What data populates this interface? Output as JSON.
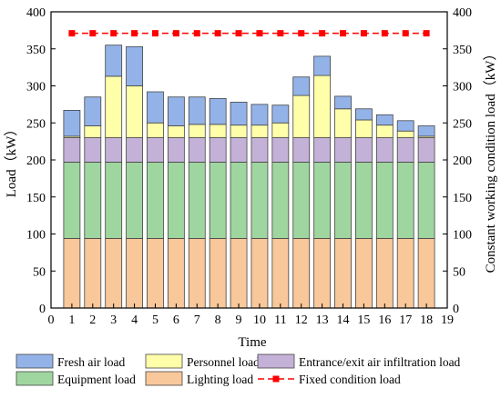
{
  "chart_data": {
    "type": "bar",
    "stacked": true,
    "xlabel": "Time",
    "ylabel": "Load（kW）",
    "y2label": "Constant working condition load（kW）",
    "xlim": [
      0,
      19
    ],
    "ylim": [
      0,
      400
    ],
    "y2lim": [
      0,
      400
    ],
    "x_ticks": [
      0,
      1,
      2,
      3,
      4,
      5,
      6,
      7,
      8,
      9,
      10,
      11,
      12,
      13,
      14,
      15,
      16,
      17,
      18,
      19
    ],
    "y_ticks": [
      0,
      50,
      100,
      150,
      200,
      250,
      300,
      350,
      400
    ],
    "categories": [
      1,
      2,
      3,
      4,
      5,
      6,
      7,
      8,
      9,
      10,
      11,
      12,
      13,
      14,
      15,
      16,
      17,
      18
    ],
    "series": [
      {
        "name": "Lighting load",
        "color": "#F8C79A",
        "values": [
          94,
          94,
          94,
          94,
          94,
          94,
          94,
          94,
          94,
          94,
          94,
          94,
          94,
          94,
          94,
          94,
          94,
          94
        ]
      },
      {
        "name": "Equipment load",
        "color": "#9FD6A0",
        "values": [
          103,
          103,
          103,
          103,
          103,
          103,
          103,
          103,
          103,
          103,
          103,
          103,
          103,
          103,
          103,
          103,
          103,
          103
        ]
      },
      {
        "name": "Entrance/exit air infiltration load",
        "color": "#C3B1D8",
        "values": [
          33,
          33,
          33,
          33,
          33,
          33,
          33,
          33,
          33,
          33,
          33,
          33,
          33,
          33,
          33,
          33,
          33,
          33
        ]
      },
      {
        "name": "Personnel load",
        "color": "#FFFFAA",
        "values": [
          2,
          16,
          83,
          70,
          20,
          16,
          18,
          18,
          17,
          17,
          20,
          57,
          84,
          39,
          24,
          17,
          9,
          2
        ]
      },
      {
        "name": "Fresh air load",
        "color": "#93B3E8",
        "values": [
          35,
          39,
          42,
          53,
          42,
          39,
          37,
          35,
          31,
          28,
          24,
          25,
          26,
          17,
          15,
          14,
          14,
          14
        ]
      }
    ],
    "line_series": {
      "name": "Fixed condition load",
      "color": "#FF0000",
      "x": [
        1,
        2,
        3,
        4,
        5,
        6,
        7,
        8,
        9,
        10,
        11,
        12,
        13,
        14,
        15,
        16,
        17,
        18
      ],
      "values": [
        371,
        371,
        371,
        371,
        371,
        371,
        371,
        371,
        371,
        371,
        371,
        371,
        371,
        371,
        371,
        371,
        371,
        371
      ]
    },
    "legend": {
      "placement": "bottom",
      "items": [
        "Fresh air load",
        "Personnel load",
        "Entrance/exit air infiltration load",
        "Equipment load",
        "Lighting load",
        "Fixed condition load"
      ]
    }
  }
}
